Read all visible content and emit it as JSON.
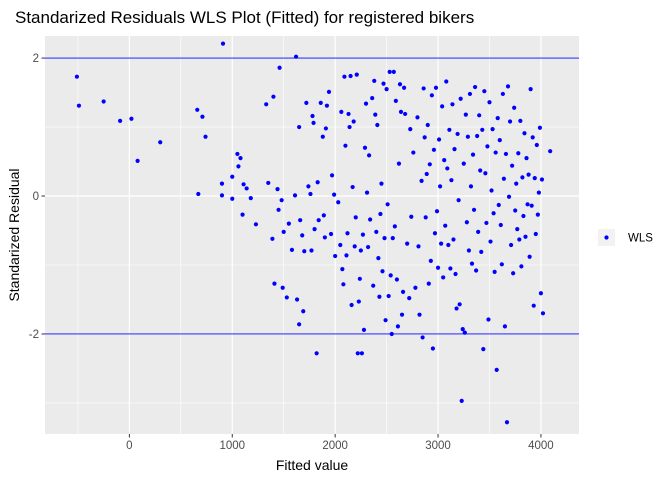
{
  "chart_data": {
    "type": "scatter",
    "title": "Standarized Residuals WLS Plot (Fitted) for registered bikers",
    "xlabel": "Fitted value",
    "ylabel": "Standarized Residual",
    "xlim": [
      -820,
      4370
    ],
    "ylim": [
      -3.45,
      2.32
    ],
    "x_ticks": [
      0,
      1000,
      2000,
      3000,
      4000
    ],
    "x_tick_labels": [
      "0",
      "1000",
      "2000",
      "3000",
      "4000"
    ],
    "y_ticks": [
      -2,
      0,
      2
    ],
    "y_tick_labels": [
      "-2",
      "0",
      "2"
    ],
    "grid": true,
    "legend": {
      "position": "right",
      "entries": [
        {
          "label": "WLS",
          "color": "#0000ff"
        }
      ]
    },
    "hlines": [
      2,
      -2
    ],
    "hline_color": "#0000ff",
    "series": [
      {
        "name": "WLS",
        "color": "#0000ff",
        "points": [
          [
            -510,
            1.73
          ],
          [
            -490,
            1.31
          ],
          [
            -250,
            1.37
          ],
          [
            -90,
            1.09
          ],
          [
            20,
            1.12
          ],
          [
            80,
            0.51
          ],
          [
            300,
            0.78
          ],
          [
            660,
            1.25
          ],
          [
            670,
            0.03
          ],
          [
            710,
            1.15
          ],
          [
            740,
            0.86
          ],
          [
            900,
            0.18
          ],
          [
            900,
            0.01
          ],
          [
            910,
            2.21
          ],
          [
            1000,
            0.28
          ],
          [
            1000,
            -0.04
          ],
          [
            1050,
            0.61
          ],
          [
            1060,
            0.43
          ],
          [
            1080,
            0.55
          ],
          [
            1100,
            -0.27
          ],
          [
            1110,
            0.17
          ],
          [
            1140,
            0.11
          ],
          [
            1180,
            -0.03
          ],
          [
            1230,
            -0.41
          ],
          [
            1330,
            1.33
          ],
          [
            1350,
            0.19
          ],
          [
            1390,
            -0.62
          ],
          [
            1400,
            1.44
          ],
          [
            1410,
            -1.27
          ],
          [
            1440,
            0.1
          ],
          [
            1450,
            -0.2
          ],
          [
            1460,
            1.86
          ],
          [
            1480,
            -0.06
          ],
          [
            1490,
            -1.33
          ],
          [
            1500,
            -0.52
          ],
          [
            1530,
            -1.47
          ],
          [
            1550,
            -0.4
          ],
          [
            1580,
            -0.78
          ],
          [
            1610,
            0.01
          ],
          [
            1620,
            2.02
          ],
          [
            1630,
            -1.5
          ],
          [
            1650,
            -1.86
          ],
          [
            1650,
            1.0
          ],
          [
            1660,
            -0.35
          ],
          [
            1680,
            -0.57
          ],
          [
            1690,
            -1.67
          ],
          [
            1700,
            -0.8
          ],
          [
            1720,
            1.35
          ],
          [
            1740,
            0.14
          ],
          [
            1760,
            0.03
          ],
          [
            1770,
            -0.79
          ],
          [
            1780,
            1.16
          ],
          [
            1790,
            1.06
          ],
          [
            1800,
            -0.48
          ],
          [
            1820,
            -2.28
          ],
          [
            1830,
            0.2
          ],
          [
            1840,
            -0.35
          ],
          [
            1860,
            1.35
          ],
          [
            1880,
            0.86
          ],
          [
            1890,
            -0.28
          ],
          [
            1900,
            -0.6
          ],
          [
            1910,
            0.98
          ],
          [
            1920,
            1.31
          ],
          [
            1940,
            1.51
          ],
          [
            1960,
            -0.55
          ],
          [
            1970,
            0.3
          ],
          [
            1990,
            0.02
          ],
          [
            2000,
            -0.87
          ],
          [
            2030,
            -0.09
          ],
          [
            2050,
            -0.71
          ],
          [
            2060,
            1.22
          ],
          [
            2070,
            -1.06
          ],
          [
            2080,
            -1.28
          ],
          [
            2090,
            1.73
          ],
          [
            2100,
            0.73
          ],
          [
            2110,
            -0.86
          ],
          [
            2120,
            -0.54
          ],
          [
            2130,
            1.19
          ],
          [
            2140,
            1.0
          ],
          [
            2150,
            1.74
          ],
          [
            2160,
            -1.58
          ],
          [
            2170,
            0.13
          ],
          [
            2180,
            1.08
          ],
          [
            2190,
            -0.73
          ],
          [
            2200,
            -0.31
          ],
          [
            2210,
            1.76
          ],
          [
            2220,
            -2.28
          ],
          [
            2230,
            -1.53
          ],
          [
            2240,
            -1.2
          ],
          [
            2250,
            -0.79
          ],
          [
            2260,
            -2.28
          ],
          [
            2270,
            -0.56
          ],
          [
            2280,
            -1.94
          ],
          [
            2290,
            0.7
          ],
          [
            2300,
            1.34
          ],
          [
            2310,
            0.05
          ],
          [
            2320,
            -0.74
          ],
          [
            2330,
            0.59
          ],
          [
            2340,
            -0.34
          ],
          [
            2360,
            1.42
          ],
          [
            2370,
            -1.3
          ],
          [
            2380,
            1.67
          ],
          [
            2390,
            1.18
          ],
          [
            2400,
            -0.52
          ],
          [
            2410,
            1.03
          ],
          [
            2420,
            -0.9
          ],
          [
            2430,
            -1.46
          ],
          [
            2440,
            -0.26
          ],
          [
            2450,
            0.18
          ],
          [
            2460,
            -1.09
          ],
          [
            2470,
            1.63
          ],
          [
            2480,
            -0.61
          ],
          [
            2490,
            -1.8
          ],
          [
            2500,
            1.55
          ],
          [
            2510,
            -0.12
          ],
          [
            2520,
            -1.45
          ],
          [
            2530,
            1.8
          ],
          [
            2540,
            -1.15
          ],
          [
            2550,
            -2.0
          ],
          [
            2560,
            -0.61
          ],
          [
            2570,
            1.8
          ],
          [
            2580,
            -0.44
          ],
          [
            2590,
            1.38
          ],
          [
            2600,
            -1.21
          ],
          [
            2610,
            -1.89
          ],
          [
            2620,
            0.47
          ],
          [
            2630,
            1.62
          ],
          [
            2640,
            1.22
          ],
          [
            2650,
            -1.72
          ],
          [
            2660,
            -1.39
          ],
          [
            2670,
            1.57
          ],
          [
            2680,
            1.19
          ],
          [
            2700,
            -0.69
          ],
          [
            2720,
            -1.48
          ],
          [
            2730,
            0.97
          ],
          [
            2740,
            -0.3
          ],
          [
            2760,
            0.63
          ],
          [
            2780,
            -1.33
          ],
          [
            2800,
            1.14
          ],
          [
            2810,
            -0.73
          ],
          [
            2820,
            -1.72
          ],
          [
            2840,
            0.22
          ],
          [
            2850,
            -2.05
          ],
          [
            2860,
            1.56
          ],
          [
            2870,
            0.85
          ],
          [
            2880,
            -0.31
          ],
          [
            2890,
            0.32
          ],
          [
            2900,
            1.03
          ],
          [
            2910,
            -1.27
          ],
          [
            2920,
            0.46
          ],
          [
            2930,
            -0.94
          ],
          [
            2940,
            1.46
          ],
          [
            2950,
            -2.21
          ],
          [
            2960,
            0.67
          ],
          [
            2970,
            -0.54
          ],
          [
            2980,
            1.57
          ],
          [
            2990,
            -0.22
          ],
          [
            3000,
            -1.04
          ],
          [
            3010,
            0.82
          ],
          [
            3020,
            0.14
          ],
          [
            3030,
            -0.69
          ],
          [
            3040,
            1.3
          ],
          [
            3050,
            -1.18
          ],
          [
            3060,
            0.52
          ],
          [
            3070,
            -0.43
          ],
          [
            3080,
            1.66
          ],
          [
            3090,
            0.4
          ],
          [
            3100,
            -0.71
          ],
          [
            3110,
            0.96
          ],
          [
            3120,
            -1.05
          ],
          [
            3130,
            0.23
          ],
          [
            3140,
            1.33
          ],
          [
            3150,
            -0.63
          ],
          [
            3160,
            0.68
          ],
          [
            3170,
            -1.13
          ],
          [
            3180,
            -1.63
          ],
          [
            3190,
            0.9
          ],
          [
            3200,
            -0.06
          ],
          [
            3210,
            -1.57
          ],
          [
            3220,
            1.41
          ],
          [
            3230,
            -2.97
          ],
          [
            3240,
            -1.93
          ],
          [
            3250,
            0.47
          ],
          [
            3260,
            -1.98
          ],
          [
            3270,
            1.18
          ],
          [
            3280,
            -0.38
          ],
          [
            3290,
            0.86
          ],
          [
            3300,
            -0.79
          ],
          [
            3310,
            1.48
          ],
          [
            3320,
            0.14
          ],
          [
            3330,
            -0.98
          ],
          [
            3340,
            0.6
          ],
          [
            3350,
            -0.2
          ],
          [
            3360,
            1.58
          ],
          [
            3370,
            -1.08
          ],
          [
            3380,
            0.87
          ],
          [
            3390,
            -0.52
          ],
          [
            3400,
            1.17
          ],
          [
            3410,
            0.37
          ],
          [
            3420,
            -0.81
          ],
          [
            3430,
            0.96
          ],
          [
            3440,
            -2.22
          ],
          [
            3450,
            1.52
          ],
          [
            3460,
            0.33
          ],
          [
            3470,
            -0.39
          ],
          [
            3480,
            0.72
          ],
          [
            3490,
            -1.79
          ],
          [
            3500,
            1.36
          ],
          [
            3510,
            -0.66
          ],
          [
            3520,
            0.08
          ],
          [
            3530,
            0.97
          ],
          [
            3540,
            -0.25
          ],
          [
            3550,
            -1.1
          ],
          [
            3560,
            0.63
          ],
          [
            3570,
            -2.52
          ],
          [
            3580,
            1.13
          ],
          [
            3590,
            -0.13
          ],
          [
            3600,
            0.81
          ],
          [
            3610,
            -0.42
          ],
          [
            3620,
            -0.99
          ],
          [
            3630,
            1.48
          ],
          [
            3640,
            0.25
          ],
          [
            3650,
            -1.89
          ],
          [
            3660,
            0.61
          ],
          [
            3670,
            -3.28
          ],
          [
            3680,
            1.59
          ],
          [
            3690,
            -0.01
          ],
          [
            3700,
            1.08
          ],
          [
            3710,
            -0.71
          ],
          [
            3720,
            0.44
          ],
          [
            3730,
            -1.12
          ],
          [
            3740,
            1.28
          ],
          [
            3750,
            -0.21
          ],
          [
            3760,
            0.18
          ],
          [
            3770,
            -0.48
          ],
          [
            3780,
            0.62
          ],
          [
            3790,
            -0.63
          ],
          [
            3800,
            1.09
          ],
          [
            3810,
            -1.02
          ],
          [
            3820,
            0.27
          ],
          [
            3830,
            -0.29
          ],
          [
            3840,
            0.91
          ],
          [
            3850,
            -0.59
          ],
          [
            3860,
            0.55
          ],
          [
            3870,
            -0.12
          ],
          [
            3880,
            0.31
          ],
          [
            3890,
            -0.88
          ],
          [
            3900,
            1.55
          ],
          [
            3910,
            -0.14
          ],
          [
            3920,
            0.85
          ],
          [
            3930,
            -1.59
          ],
          [
            3940,
            0.26
          ],
          [
            3950,
            -0.55
          ],
          [
            3960,
            0.74
          ],
          [
            3970,
            -0.27
          ],
          [
            3980,
            0.05
          ],
          [
            3990,
            0.99
          ],
          [
            4000,
            -1.41
          ],
          [
            4010,
            0.24
          ],
          [
            4020,
            -1.7
          ],
          [
            4090,
            0.65
          ]
        ]
      }
    ]
  }
}
